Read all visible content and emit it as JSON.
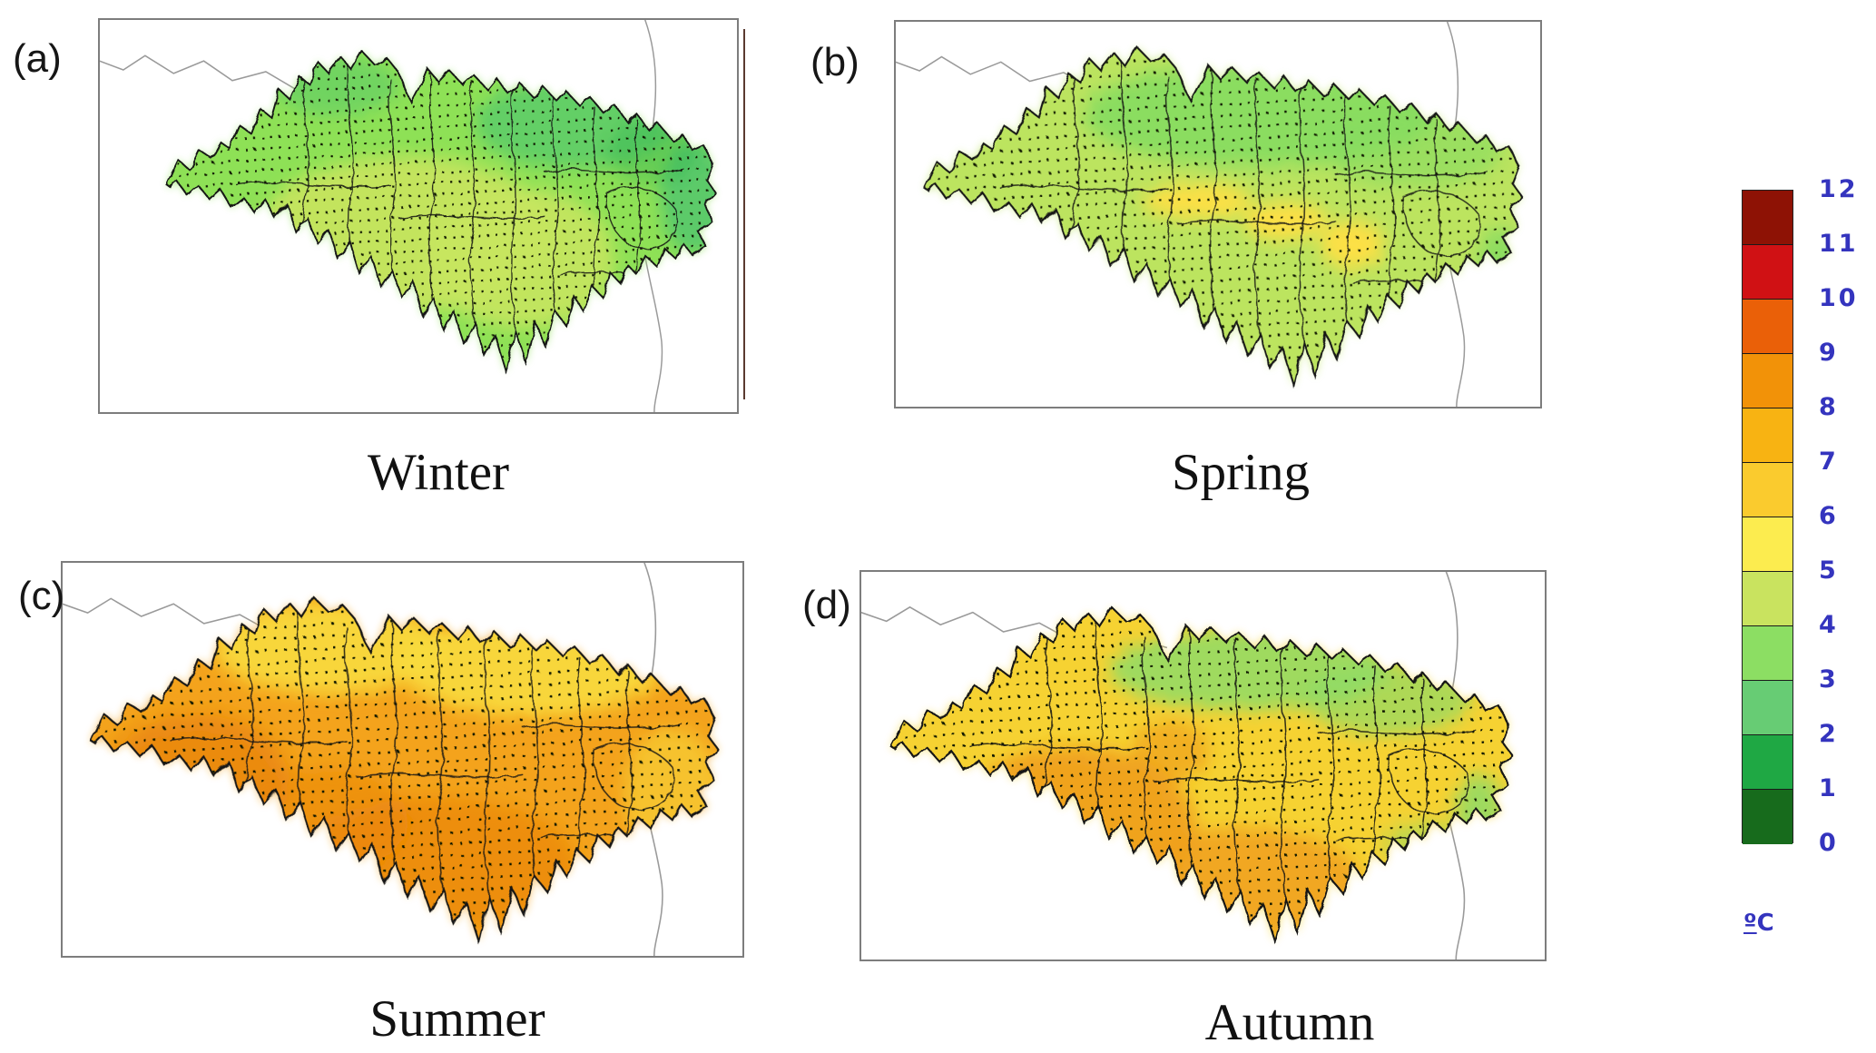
{
  "figure": {
    "panels": [
      {
        "id": "a",
        "label": "(a)",
        "season": "Winter"
      },
      {
        "id": "b",
        "label": "(b)",
        "season": "Spring"
      },
      {
        "id": "c",
        "label": "(c)",
        "season": "Summer"
      },
      {
        "id": "d",
        "label": "(d)",
        "season": "Autumn"
      }
    ],
    "colorbar": {
      "ticks": [
        "12",
        "11",
        "10",
        "9",
        "8",
        "7",
        "6",
        "5",
        "4",
        "3",
        "2",
        "1",
        "0"
      ],
      "unit": "ºC",
      "label_color": "#3434BE",
      "cell_colors_top_to_bottom": [
        "#8E1205",
        "#D01114",
        "#EA6008",
        "#F29208",
        "#F8B312",
        "#FACB2E",
        "#FCEC4F",
        "#C9E35F",
        "#8CDE63",
        "#67CC74",
        "#1FA844",
        "#176B1C"
      ]
    }
  },
  "season_fills": {
    "Winter": {
      "base": "#8EE156",
      "band": "#C6E55E",
      "cool": "#54C86B",
      "cool2": "#2FB251"
    },
    "Spring": {
      "base": "#BCE45F",
      "cool": "#85DC60",
      "yellow": "#FFDF45",
      "warm": "#F2A51C"
    },
    "Summer": {
      "base": "#F4A31B",
      "yellow": "#F8DC3E",
      "hot": "#E98409"
    },
    "Autumn": {
      "base": "#F6D232",
      "warm": "#F0A01C",
      "cool": "#8FDC66"
    }
  },
  "chart_data": {
    "type": "heatmap",
    "title": "",
    "panels": [
      {
        "label": "(a)",
        "season": "Winter",
        "approx_value_range_c": [
          2,
          4
        ]
      },
      {
        "label": "(b)",
        "season": "Spring",
        "approx_value_range_c": [
          3,
          6
        ]
      },
      {
        "label": "(c)",
        "season": "Summer",
        "approx_value_range_c": [
          6,
          9
        ]
      },
      {
        "label": "(d)",
        "season": "Autumn",
        "approx_value_range_c": [
          4,
          8
        ]
      }
    ],
    "legend": {
      "min": 0,
      "max": 12,
      "step": 1,
      "unit": "ºC",
      "position": "right"
    }
  }
}
